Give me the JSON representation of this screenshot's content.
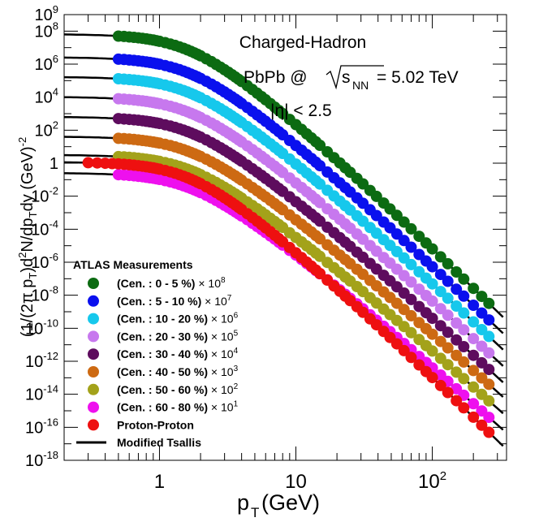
{
  "chart_data": {
    "type": "scatter",
    "annotations": {
      "line1": "Charged-Hadron",
      "line2_prefix": "PbPb @",
      "line2_sqrt_s": "s",
      "line2_sub": "NN",
      "line2_suffix": "= 5.02 TeV",
      "line3": "|η| < 2.5"
    },
    "xlabel": {
      "main": "p",
      "sub": "T",
      "rest": " (GeV)"
    },
    "ylabel": "(1/(2π p_T) d²N/dp_T dy (GeV)^-2",
    "xscale": "log",
    "yscale": "log",
    "xlim": [
      0.2,
      350
    ],
    "ylim": [
      1e-18,
      1000000000.0
    ],
    "x_ticks": [
      {
        "value": 1,
        "label": "1"
      },
      {
        "value": 10,
        "label": "10"
      },
      {
        "value": 100,
        "label": "10",
        "exp": "2"
      }
    ],
    "y_ticks": [
      {
        "value": 1000000000.0,
        "mant": "10",
        "exp": "9"
      },
      {
        "value": 100000000.0,
        "mant": "10",
        "exp": "8"
      },
      {
        "value": 1000000.0,
        "mant": "10",
        "exp": "6"
      },
      {
        "value": 10000.0,
        "mant": "10",
        "exp": "4"
      },
      {
        "value": 100.0,
        "mant": "10",
        "exp": "2"
      },
      {
        "value": 1,
        "mant": "1",
        "exp": ""
      },
      {
        "value": 0.01,
        "mant": "10",
        "exp": "-2"
      },
      {
        "value": 0.0001,
        "mant": "10",
        "exp": "-4"
      },
      {
        "value": 1e-06,
        "mant": "10",
        "exp": "-6"
      },
      {
        "value": 1e-08,
        "mant": "10",
        "exp": "-8"
      },
      {
        "value": 1e-10,
        "mant": "10",
        "exp": "-10"
      },
      {
        "value": 1e-12,
        "mant": "10",
        "exp": "-12"
      },
      {
        "value": 1e-14,
        "mant": "10",
        "exp": "-14"
      },
      {
        "value": 1e-16,
        "mant": "10",
        "exp": "-16"
      },
      {
        "value": 1e-18,
        "mant": "10",
        "exp": "-18"
      }
    ],
    "legend": {
      "title": "ATLAS Measurements",
      "position": "bottom-left",
      "fit_label": "Modified Tsallis"
    },
    "pt_points": [
      0.5,
      0.55,
      0.6,
      0.65,
      0.7,
      0.75,
      0.8,
      0.85,
      0.9,
      0.95,
      1.0,
      1.1,
      1.2,
      1.3,
      1.4,
      1.5,
      1.6,
      1.7,
      1.8,
      1.9,
      2.0,
      2.2,
      2.4,
      2.6,
      2.8,
      3.0,
      3.2,
      3.4,
      3.6,
      3.8,
      4.0,
      4.4,
      4.8,
      5.2,
      5.6,
      6.0,
      6.5,
      7.0,
      7.5,
      8.0,
      9.0,
      10,
      11,
      12,
      13,
      14,
      15,
      17,
      19,
      21,
      23,
      25,
      28,
      31,
      35,
      39,
      44,
      49,
      55,
      62,
      70,
      80,
      90,
      100,
      115,
      130,
      150,
      170,
      200,
      230,
      260
    ],
    "series": [
      {
        "name": "(Cen. : 0 - 5 %)",
        "mult": "10",
        "mult_exp": "8",
        "color": "#0c6b12",
        "y_at_0p5": 50000000.0,
        "y_at_260": 3.2e-09,
        "x_start": 0.5
      },
      {
        "name": "(Cen. : 5 - 10 %)",
        "mult": "10",
        "mult_exp": "7",
        "color": "#0a10ee",
        "y_at_0p5": 2000000.0,
        "y_at_260": 3.2e-10,
        "x_start": 0.5
      },
      {
        "name": "(Cen. : 10 - 20 %)",
        "mult": "10",
        "mult_exp": "6",
        "color": "#16c8ec",
        "y_at_0p5": 130000.0,
        "y_at_260": 3.2e-11,
        "x_start": 0.5
      },
      {
        "name": "(Cen. : 20 - 30 %)",
        "mult": "10",
        "mult_exp": "5",
        "color": "#c778ee",
        "y_at_0p5": 8000.0,
        "y_at_260": 3.2e-12,
        "x_start": 0.5
      },
      {
        "name": "(Cen. : 30 - 40 %)",
        "mult": "10",
        "mult_exp": "4",
        "color": "#5e0c5e",
        "y_at_0p5": 500.0,
        "y_at_260": 3.2e-13,
        "x_start": 0.5
      },
      {
        "name": "(Cen. : 40 - 50 %)",
        "mult": "10",
        "mult_exp": "3",
        "color": "#cd6a13",
        "y_at_0p5": 32.0,
        "y_at_260": 4e-14,
        "x_start": 0.5
      },
      {
        "name": "(Cen. : 50 - 60 %)",
        "mult": "10",
        "mult_exp": "2",
        "color": "#a3a21a",
        "y_at_0p5": 2.5,
        "y_at_260": 4e-15,
        "x_start": 0.5
      },
      {
        "name": "(Cen. : 60 - 80 %)",
        "mult": "10",
        "mult_exp": "1",
        "color": "#ee10ee",
        "y_at_0p5": 0.2,
        "y_at_260": 4e-16,
        "x_start": 0.5
      },
      {
        "name": "Proton-Proton",
        "mult": "",
        "mult_exp": "",
        "color": "#ee1010",
        "y_at_0p5": 0.9,
        "y_at_260": 5e-17,
        "x_start": 0.3
      }
    ]
  }
}
